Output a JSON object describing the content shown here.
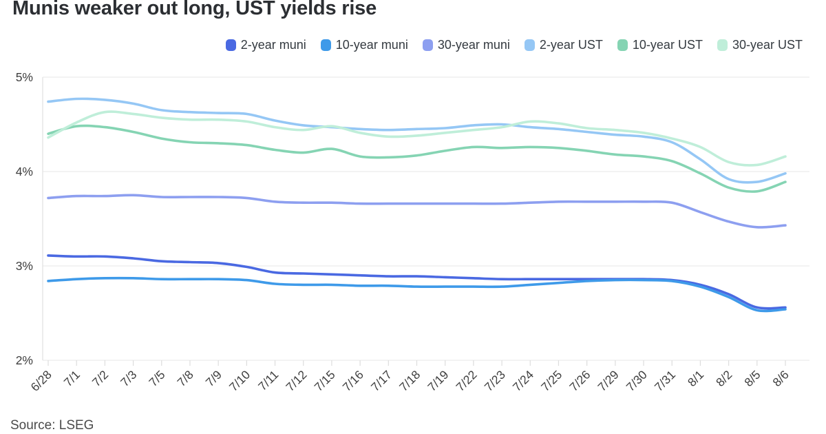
{
  "chart_data": {
    "type": "line",
    "title": "Munis weaker out long, UST yields rise",
    "source": "Source: LSEG",
    "legend_position": "top-right",
    "grid": "horizontal",
    "ylim": [
      2,
      5
    ],
    "yticks": [
      {
        "label": "5%",
        "value": 5
      },
      {
        "label": "4%",
        "value": 4
      },
      {
        "label": "3%",
        "value": 3
      },
      {
        "label": "2%",
        "value": 2
      }
    ],
    "x": [
      "6/28",
      "7/1",
      "7/2",
      "7/3",
      "7/5",
      "7/8",
      "7/9",
      "7/10",
      "7/11",
      "7/12",
      "7/15",
      "7/16",
      "7/17",
      "7/18",
      "7/19",
      "7/22",
      "7/23",
      "7/24",
      "7/25",
      "7/26",
      "7/29",
      "7/30",
      "7/31",
      "8/1",
      "8/2",
      "8/5",
      "8/6"
    ],
    "series": [
      {
        "name": "2-year muni",
        "color": "#4a69e2",
        "values": [
          3.11,
          3.1,
          3.1,
          3.08,
          3.05,
          3.04,
          3.03,
          2.99,
          2.93,
          2.92,
          2.91,
          2.9,
          2.89,
          2.89,
          2.88,
          2.87,
          2.86,
          2.86,
          2.86,
          2.86,
          2.86,
          2.86,
          2.85,
          2.8,
          2.7,
          2.56,
          2.56
        ]
      },
      {
        "name": "10-year muni",
        "color": "#3e9ae9",
        "values": [
          2.84,
          2.86,
          2.87,
          2.87,
          2.86,
          2.86,
          2.86,
          2.85,
          2.81,
          2.8,
          2.8,
          2.79,
          2.79,
          2.78,
          2.78,
          2.78,
          2.78,
          2.8,
          2.82,
          2.84,
          2.85,
          2.85,
          2.84,
          2.78,
          2.67,
          2.53,
          2.54
        ]
      },
      {
        "name": "30-year muni",
        "color": "#8d9ff0",
        "values": [
          3.72,
          3.74,
          3.74,
          3.75,
          3.73,
          3.73,
          3.73,
          3.72,
          3.68,
          3.67,
          3.67,
          3.66,
          3.66,
          3.66,
          3.66,
          3.66,
          3.66,
          3.67,
          3.68,
          3.68,
          3.68,
          3.68,
          3.67,
          3.57,
          3.47,
          3.41,
          3.43
        ]
      },
      {
        "name": "2-year UST",
        "color": "#95c7f5",
        "values": [
          4.74,
          4.77,
          4.76,
          4.72,
          4.65,
          4.63,
          4.62,
          4.61,
          4.54,
          4.49,
          4.47,
          4.45,
          4.44,
          4.45,
          4.46,
          4.49,
          4.5,
          4.47,
          4.45,
          4.42,
          4.39,
          4.37,
          4.31,
          4.13,
          3.92,
          3.89,
          3.98
        ]
      },
      {
        "name": "10-year UST",
        "color": "#85d4b3",
        "values": [
          4.4,
          4.48,
          4.47,
          4.42,
          4.35,
          4.31,
          4.3,
          4.28,
          4.23,
          4.2,
          4.24,
          4.16,
          4.15,
          4.17,
          4.22,
          4.26,
          4.25,
          4.26,
          4.25,
          4.22,
          4.18,
          4.16,
          4.11,
          3.98,
          3.83,
          3.79,
          3.89
        ]
      },
      {
        "name": "30-year UST",
        "color": "#bfeed9",
        "values": [
          4.36,
          4.52,
          4.63,
          4.61,
          4.57,
          4.55,
          4.55,
          4.53,
          4.47,
          4.44,
          4.48,
          4.41,
          4.37,
          4.38,
          4.41,
          4.44,
          4.47,
          4.53,
          4.51,
          4.46,
          4.44,
          4.41,
          4.35,
          4.26,
          4.1,
          4.07,
          4.16
        ]
      }
    ]
  }
}
